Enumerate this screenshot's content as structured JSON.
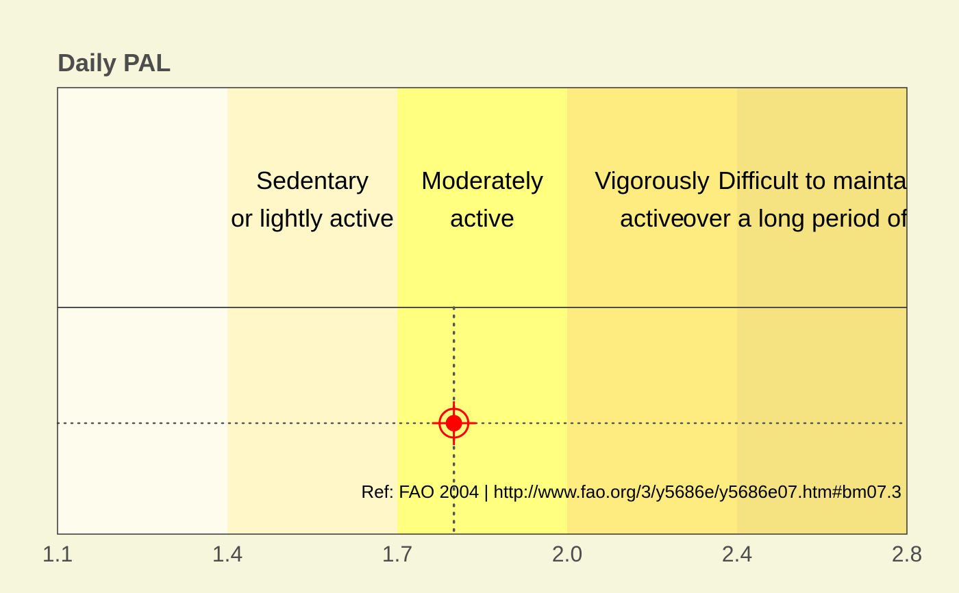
{
  "chart_data": {
    "type": "scatter",
    "title": "Daily PAL",
    "xlim": [
      1.1,
      2.8
    ],
    "ticks": [
      "1.1",
      "1.4",
      "1.7",
      "2.0",
      "2.4",
      "2.8"
    ],
    "tick_values": [
      1.1,
      1.4,
      1.7,
      2.0,
      2.4,
      2.8
    ],
    "bands": [
      {
        "from": 1.1,
        "to": 1.4,
        "color": "#fefded",
        "lines": []
      },
      {
        "from": 1.4,
        "to": 1.7,
        "color": "#fff7c8",
        "lines": [
          "Sedentary",
          "or lightly active"
        ]
      },
      {
        "from": 1.7,
        "to": 2.0,
        "color": "#ffff80",
        "lines": [
          "Moderately",
          "active"
        ]
      },
      {
        "from": 2.0,
        "to": 2.4,
        "color": "#ffec80",
        "lines": [
          "Vigorously",
          "active"
        ]
      },
      {
        "from": 2.4,
        "to": 2.8,
        "color": "#f4e380",
        "lines": [
          "Difficult to maintain",
          "over a long period of time"
        ]
      }
    ],
    "point": {
      "x": 1.8,
      "color": "#ff0000"
    },
    "reference": "Ref: FAO 2004 | http://www.fao.org/3/y5686e/y5686e07.htm#bm07.3"
  }
}
